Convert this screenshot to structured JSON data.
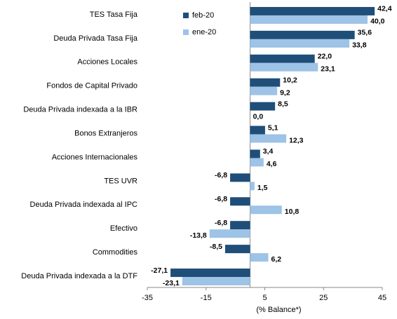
{
  "chart_data": {
    "type": "bar",
    "orientation": "horizontal",
    "categories": [
      "TES Tasa Fija",
      "Deuda Privada Tasa Fija",
      "Acciones Locales",
      "Fondos de Capital Privado",
      "Deuda Privada indexada a la IBR",
      "Bonos Extranjeros",
      "Acciones Internacionales",
      "TES UVR",
      "Deuda Privada indexada al IPC",
      "Efectivo",
      "Commodities",
      "Deuda Privada indexada a la DTF"
    ],
    "series": [
      {
        "name": "feb-20",
        "color": "#1f4e79",
        "values": [
          42.4,
          35.6,
          22.0,
          10.2,
          8.5,
          5.1,
          3.4,
          -6.8,
          -6.8,
          -6.8,
          -8.5,
          -27.1
        ],
        "value_labels": [
          "42,4",
          "35,6",
          "22,0",
          "10,2",
          "8,5",
          "5,1",
          "3,4",
          "-6,8",
          "-6,8",
          "-6,8",
          "-8,5",
          "-27,1"
        ]
      },
      {
        "name": "ene-20",
        "color": "#9dc3e6",
        "values": [
          40.0,
          33.8,
          23.1,
          9.2,
          0.0,
          12.3,
          4.6,
          1.5,
          10.8,
          -13.8,
          6.2,
          -23.1
        ],
        "value_labels": [
          "40,0",
          "33,8",
          "23,1",
          "9,2",
          "0,0",
          "12,3",
          "4,6",
          "1,5",
          "10,8",
          "-13,8",
          "6,2",
          "-23,1"
        ]
      }
    ],
    "xlabel": "(% Balance*)",
    "xlim": [
      -35,
      45
    ],
    "xticks": [
      -35,
      -15,
      5,
      25,
      45
    ],
    "legend": "top-left"
  }
}
